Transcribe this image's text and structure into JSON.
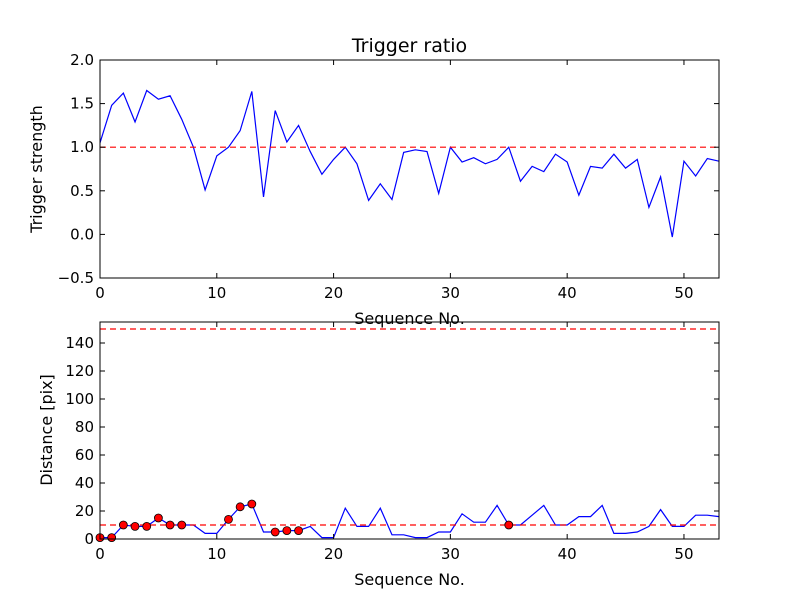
{
  "chart_data": [
    {
      "type": "line",
      "title": "Trigger ratio",
      "xlabel": "Sequence No.",
      "ylabel": "Trigger strength",
      "xlim": [
        0,
        53
      ],
      "ylim": [
        -0.5,
        2.0
      ],
      "xticks": [
        0,
        10,
        20,
        30,
        40,
        50
      ],
      "yticks": [
        -0.5,
        0.0,
        0.5,
        1.0,
        1.5,
        2.0
      ],
      "ytick_labels": [
        "−0.5",
        "0.0",
        "0.5",
        "1.0",
        "1.5",
        "2.0"
      ],
      "grid": false,
      "series": [
        {
          "name": "trigger strength",
          "color": "#0000ff",
          "style": "solid",
          "x": [
            0,
            1,
            2,
            3,
            4,
            5,
            6,
            7,
            8,
            9,
            10,
            11,
            12,
            13,
            14,
            15,
            16,
            17,
            18,
            19,
            20,
            21,
            22,
            23,
            24,
            25,
            26,
            27,
            28,
            29,
            30,
            31,
            32,
            33,
            34,
            35,
            36,
            37,
            38,
            39,
            40,
            41,
            42,
            43,
            44,
            45,
            46,
            47,
            48,
            49,
            50,
            51,
            52,
            53
          ],
          "values": [
            1.05,
            1.48,
            1.62,
            1.29,
            1.65,
            1.55,
            1.59,
            1.32,
            1.0,
            0.51,
            0.9,
            1.0,
            1.19,
            1.64,
            0.43,
            1.42,
            1.06,
            1.25,
            0.95,
            0.69,
            0.86,
            1.0,
            0.81,
            0.39,
            0.58,
            0.4,
            0.94,
            0.97,
            0.95,
            0.47,
            1.0,
            0.83,
            0.88,
            0.81,
            0.86,
            1.0,
            0.61,
            0.78,
            0.72,
            0.92,
            0.83,
            0.45,
            0.78,
            0.76,
            0.92,
            0.76,
            0.86,
            0.31,
            0.66,
            -0.03,
            0.84,
            0.67,
            0.87,
            0.84
          ]
        }
      ],
      "hlines": [
        {
          "y": 1.0,
          "color": "#ff0000",
          "style": "dashed"
        }
      ]
    },
    {
      "type": "line",
      "title": "",
      "xlabel": "Sequence No.",
      "ylabel": "Distance [pix]",
      "xlim": [
        0,
        53
      ],
      "ylim": [
        0,
        155
      ],
      "xticks": [
        0,
        10,
        20,
        30,
        40,
        50
      ],
      "yticks": [
        0,
        20,
        40,
        60,
        80,
        100,
        120,
        140
      ],
      "grid": false,
      "series": [
        {
          "name": "distance",
          "color": "#0000ff",
          "style": "solid",
          "x": [
            0,
            1,
            2,
            3,
            4,
            5,
            6,
            7,
            8,
            9,
            10,
            11,
            12,
            13,
            14,
            15,
            16,
            17,
            18,
            19,
            20,
            21,
            22,
            23,
            24,
            25,
            26,
            27,
            28,
            29,
            30,
            31,
            32,
            33,
            34,
            35,
            36,
            37,
            38,
            39,
            40,
            41,
            42,
            43,
            44,
            45,
            46,
            47,
            48,
            49,
            50,
            51,
            52,
            53
          ],
          "values": [
            1,
            1,
            10,
            9,
            9,
            15,
            10,
            10,
            10,
            4,
            4,
            14,
            23,
            25,
            5,
            5,
            6,
            6,
            9,
            1,
            1,
            22,
            9,
            9,
            22,
            3,
            3,
            1,
            1,
            5,
            5,
            18,
            12,
            12,
            24,
            10,
            10,
            17,
            24,
            10,
            10,
            16,
            16,
            24,
            4,
            4,
            5,
            9,
            21,
            9,
            9,
            17,
            17,
            16
          ]
        },
        {
          "name": "flagged points",
          "marker": "circle",
          "marker_color": "#ff0000",
          "x": [
            0,
            1,
            2,
            3,
            4,
            5,
            6,
            7,
            11,
            12,
            13,
            15,
            16,
            17,
            35
          ],
          "values": [
            1,
            1,
            10,
            9,
            9,
            15,
            10,
            10,
            14,
            23,
            25,
            5,
            6,
            6,
            10
          ]
        }
      ],
      "hlines": [
        {
          "y": 150,
          "color": "#ff0000",
          "style": "dashed"
        },
        {
          "y": 10,
          "color": "#ff0000",
          "style": "dashed"
        }
      ]
    }
  ]
}
